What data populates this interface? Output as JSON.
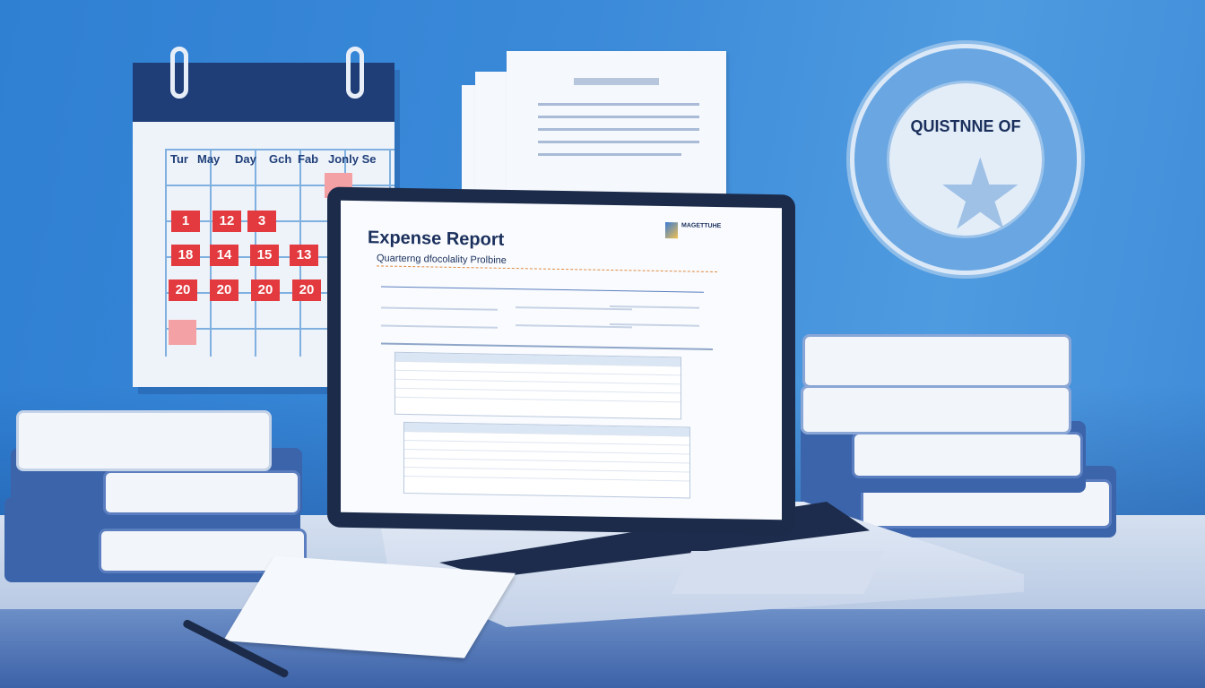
{
  "calendar": {
    "headers": [
      "Tur",
      "May",
      "Day",
      "Gch",
      "Fab",
      "Jonly Se"
    ],
    "rows": [
      [
        "1",
        "12",
        "3"
      ],
      [
        "18",
        "14",
        "15",
        "13"
      ],
      [
        "20",
        "20",
        "20",
        "20"
      ]
    ]
  },
  "laptop_screen": {
    "title": "Expense Report",
    "subtitle": "Quarterng dfocolality Prolbine",
    "logo_text": "MAGETTUHE"
  },
  "seal": {
    "text": "QUISTNNE OF"
  },
  "colors": {
    "background": "#3b8ad9",
    "calendar_header": "#1f3e78",
    "date_marker": "#e23a3f",
    "laptop_bezel": "#1c2b4a"
  }
}
